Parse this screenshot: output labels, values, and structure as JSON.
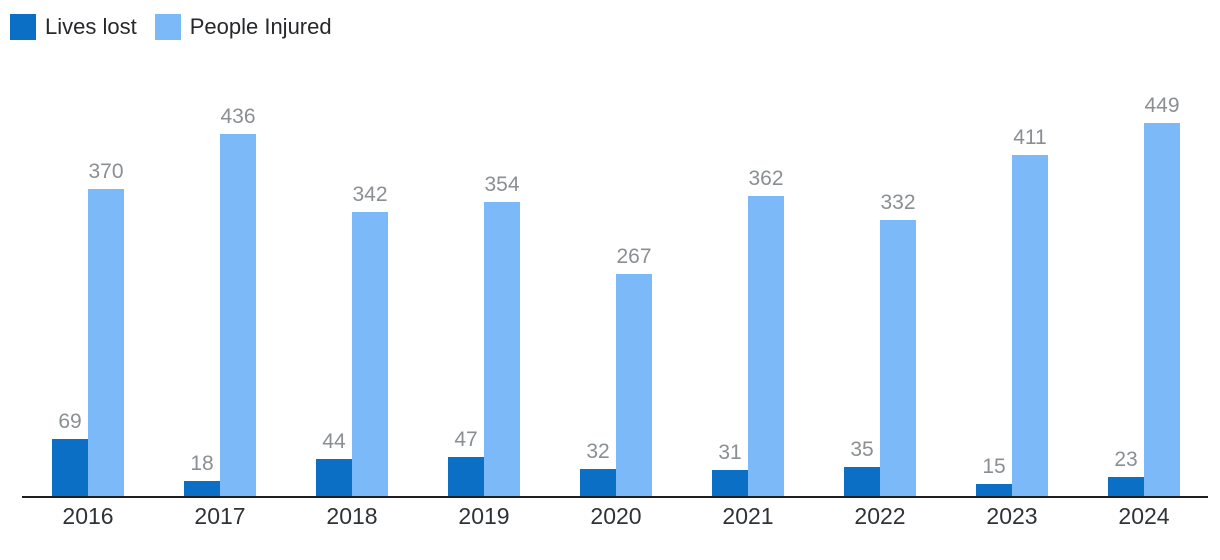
{
  "chart_data": {
    "type": "bar",
    "categories": [
      "2016",
      "2017",
      "2018",
      "2019",
      "2020",
      "2021",
      "2022",
      "2023",
      "2024"
    ],
    "series": [
      {
        "name": "Lives lost",
        "color": "#0b6fc5",
        "values": [
          69,
          18,
          44,
          47,
          32,
          31,
          35,
          15,
          23
        ]
      },
      {
        "name": "People Injured",
        "color": "#7cb9f8",
        "values": [
          370,
          436,
          342,
          354,
          267,
          362,
          332,
          411,
          449
        ]
      }
    ],
    "title": "",
    "xlabel": "",
    "ylabel": "",
    "ylim": [
      0,
      450
    ],
    "grid": false,
    "legend_position": "top-left",
    "value_labels": true,
    "axis_line_color": "#1f1f1f",
    "value_label_color": "#8a8f93",
    "category_label_color": "#2f3337"
  }
}
